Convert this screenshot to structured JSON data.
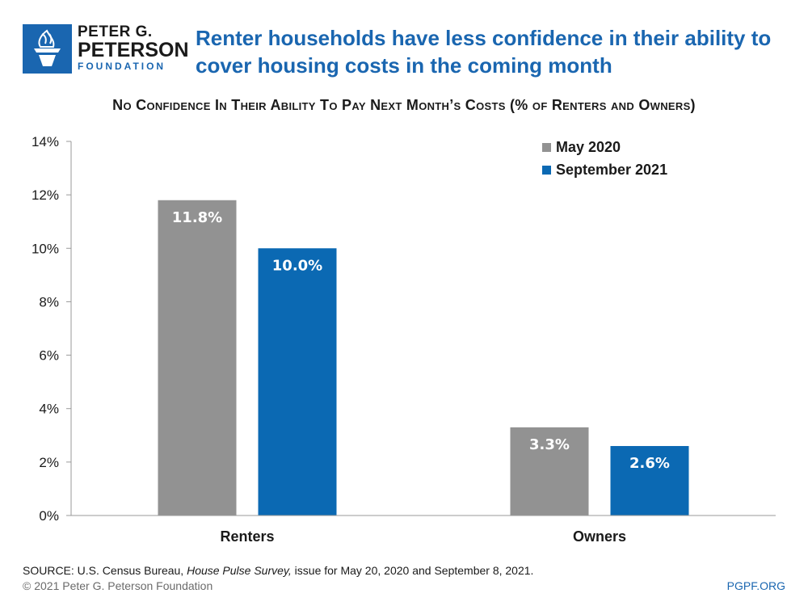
{
  "logo": {
    "line1": "PETER G.",
    "line2": "PETERSON",
    "line3": "FOUNDATION"
  },
  "headline": "Renter households have less confidence in their ability to cover housing costs in the coming month",
  "chart_data": {
    "type": "bar",
    "title": "No Confidence In Their Ability To Pay Next Month’s Costs (% of Renters and Owners)",
    "categories": [
      "Renters",
      "Owners"
    ],
    "series": [
      {
        "name": "May 2020",
        "values": [
          11.8,
          3.3
        ],
        "labels": [
          "11.8%",
          "3.3%"
        ],
        "color": "#929292"
      },
      {
        "name": "September 2021",
        "values": [
          10.0,
          2.6
        ],
        "labels": [
          "10.0%",
          "2.6%"
        ],
        "color": "#0b69b3"
      }
    ],
    "ylim": [
      0,
      14
    ],
    "yticks": [
      0,
      2,
      4,
      6,
      8,
      10,
      12,
      14
    ],
    "ytick_labels": [
      "0%",
      "2%",
      "4%",
      "6%",
      "8%",
      "10%",
      "12%",
      "14%"
    ],
    "xlabel": "",
    "ylabel": "",
    "grid": false,
    "legend": "top-right"
  },
  "footer": {
    "source_prefix": "SOURCE: U.S. Census Bureau, ",
    "source_italic": "House Pulse Survey,",
    "source_suffix": " issue for May 20, 2020 and September 8, 2021.",
    "copyright": "© 2021 Peter G. Peterson Foundation",
    "site": "PGPF.ORG"
  },
  "colors": {
    "brand_blue": "#1a66b0",
    "gray_bar": "#929292",
    "blue_bar": "#0b69b3"
  }
}
